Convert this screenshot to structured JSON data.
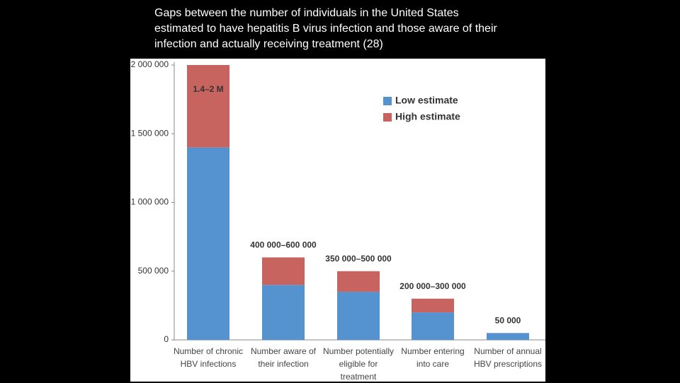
{
  "chart_data": {
    "type": "stacked_bar",
    "title": "Gaps between the number of individuals in the United States estimated to have hepatitis B virus infection and those aware of their infection and actually receiving treatment (28)",
    "categories": [
      "Number of chronic HBV infections",
      "Number aware of their infection",
      "Number potentially eligible for treatment",
      "Number entering into care",
      "Number of annual HBV prescriptions"
    ],
    "series": [
      {
        "name": "Low estimate",
        "color": "#5592d0",
        "values": [
          1400000,
          400000,
          350000,
          200000,
          50000
        ]
      },
      {
        "name": "High estimate",
        "color": "#c8645f",
        "values": [
          600000,
          200000,
          150000,
          100000,
          null
        ]
      }
    ],
    "bar_labels": [
      "1.4–2 M",
      "400 000–600 000",
      "350 000–500 000",
      "200 000–300 000",
      "50 000"
    ],
    "ylim": [
      0,
      2000000
    ],
    "yticks": [
      0,
      {
        "value": 500000,
        "label": "500 000"
      },
      {
        "value": 1000000,
        "label": "1 000 000"
      },
      {
        "value": 1500000,
        "label": "1 500 000"
      },
      {
        "value": 2000000,
        "label": "2 000 000"
      }
    ],
    "legend": "upper right"
  }
}
